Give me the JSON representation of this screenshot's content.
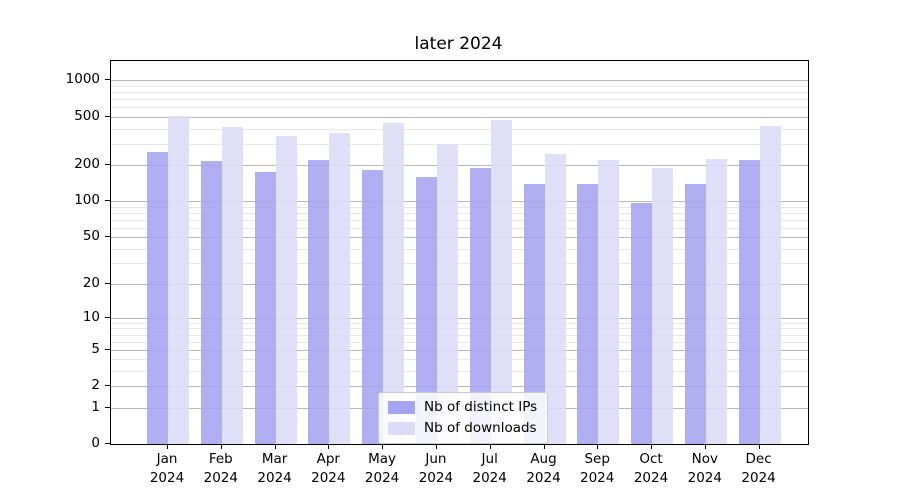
{
  "title": "later 2024",
  "legend": {
    "items": [
      {
        "label": "Nb of distinct IPs",
        "color": "#a4a4f0"
      },
      {
        "label": "Nb of downloads",
        "color": "#dcdcf8"
      }
    ]
  },
  "chart_data": {
    "type": "bar",
    "title": "later 2024",
    "categories": [
      "Jan",
      "Feb",
      "Mar",
      "Apr",
      "May",
      "Jun",
      "Jul",
      "Aug",
      "Sep",
      "Oct",
      "Nov",
      "Dec"
    ],
    "x_year_line": "2024",
    "series": [
      {
        "name": "Nb of distinct IPs",
        "color": "#a4a4f0",
        "values": [
          255,
          215,
          175,
          220,
          183,
          159,
          188,
          140,
          138,
          97,
          139,
          218
        ]
      },
      {
        "name": "Nb of downloads",
        "color": "#dcdcf8",
        "values": [
          505,
          410,
          350,
          370,
          445,
          300,
          470,
          245,
          220,
          190,
          222,
          420
        ]
      }
    ],
    "yscale": "log10(value+1)",
    "y_ticks": [
      0,
      1,
      2,
      5,
      10,
      20,
      50,
      100,
      200,
      500,
      1000
    ],
    "y_minor_ticks": [
      3,
      4,
      6,
      7,
      8,
      9,
      30,
      40,
      60,
      70,
      80,
      90,
      300,
      400,
      600,
      700,
      800,
      900
    ],
    "ylim": [
      0,
      1445
    ],
    "xlabel": "",
    "ylabel": "",
    "grid": true,
    "legend_position": "lower center"
  }
}
